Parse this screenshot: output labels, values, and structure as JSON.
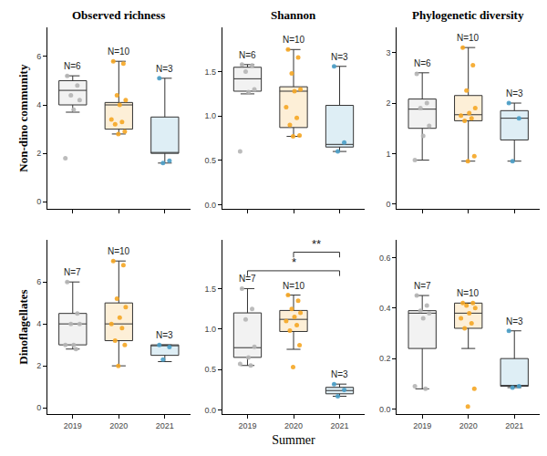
{
  "chart_data": [
    {
      "type": "box",
      "title": "Observed richness",
      "ylabel": "Non-dino community",
      "categories": [
        "2019",
        "2020",
        "2021"
      ],
      "colors": [
        "#b5b5b5",
        "#f5a623",
        "#4a9fc8"
      ],
      "ylim": [
        -0.3,
        7.2
      ],
      "yticks": [
        0,
        2,
        4,
        6
      ],
      "grid": false,
      "tick_labels": "y",
      "boxes": [
        {
          "q1": 4.0,
          "median": 4.6,
          "q3": 5.0,
          "lower": 3.7,
          "upper": 5.2,
          "points": [
            5.2,
            4.8,
            4.4,
            4.2,
            3.8,
            1.8
          ],
          "n_label": "N=6"
        },
        {
          "q1": 3.0,
          "median": 4.0,
          "q3": 4.1,
          "lower": 2.8,
          "upper": 5.8,
          "points": [
            5.8,
            5.7,
            4.4,
            4.2,
            4.0,
            3.4,
            3.3,
            3.2,
            2.9,
            2.8
          ],
          "n_label": "N=10"
        },
        {
          "q1": 2.0,
          "median": 2.0,
          "q3": 3.5,
          "lower": 1.6,
          "upper": 5.1,
          "points": [
            5.1,
            1.7,
            1.6
          ],
          "n_label": "N=3"
        }
      ]
    },
    {
      "type": "box",
      "title": "Shannon",
      "categories": [
        "2019",
        "2020",
        "2021"
      ],
      "colors": [
        "#b5b5b5",
        "#f5a623",
        "#4a9fc8"
      ],
      "ylim": [
        -0.05,
        2.0
      ],
      "yticks": [
        {
          "value": 0,
          "label": "0.0"
        },
        0.5,
        {
          "value": 1,
          "label": "1.0"
        },
        1.5
      ],
      "grid": false,
      "tick_labels": "y",
      "boxes": [
        {
          "q1": 1.28,
          "median": 1.42,
          "q3": 1.55,
          "lower": 1.25,
          "upper": 1.58,
          "points": [
            1.58,
            1.57,
            1.5,
            1.3,
            1.27,
            0.6
          ],
          "n_label": "N=6"
        },
        {
          "q1": 0.87,
          "median": 1.28,
          "q3": 1.33,
          "lower": 0.77,
          "upper": 1.75,
          "points": [
            1.75,
            1.66,
            1.48,
            1.3,
            1.28,
            1.1,
            0.98,
            0.9,
            0.78,
            0.77
          ],
          "n_label": "N=10"
        },
        {
          "q1": 0.65,
          "median": 0.68,
          "q3": 1.12,
          "lower": 0.6,
          "upper": 1.56,
          "points": [
            1.56,
            0.7,
            0.6
          ],
          "n_label": "N=3"
        }
      ]
    },
    {
      "type": "box",
      "title": "Phylogenetic diversity",
      "categories": [
        "2019",
        "2020",
        "2021"
      ],
      "colors": [
        "#b5b5b5",
        "#f5a623",
        "#4a9fc8"
      ],
      "ylim": [
        -0.1,
        3.5
      ],
      "yticks": [
        0,
        1,
        2,
        3
      ],
      "grid": false,
      "tick_labels": "y",
      "boxes": [
        {
          "q1": 1.5,
          "median": 1.88,
          "q3": 2.08,
          "lower": 0.87,
          "upper": 2.6,
          "points": [
            2.58,
            2.0,
            1.9,
            1.55,
            1.35,
            0.87
          ],
          "n_label": "N=6"
        },
        {
          "q1": 1.65,
          "median": 1.77,
          "q3": 2.15,
          "lower": 0.85,
          "upper": 3.1,
          "points": [
            3.1,
            2.75,
            2.25,
            1.9,
            1.8,
            1.75,
            1.7,
            1.65,
            0.95,
            0.85
          ],
          "n_label": "N=10"
        },
        {
          "q1": 1.27,
          "median": 1.7,
          "q3": 1.85,
          "lower": 0.85,
          "upper": 2.0,
          "points": [
            2.0,
            1.7,
            0.85
          ],
          "n_label": "N=3"
        }
      ]
    },
    {
      "type": "box",
      "ylabel": "Dinoflagellates",
      "categories": [
        "2019",
        "2020",
        "2021"
      ],
      "colors": [
        "#b5b5b5",
        "#f5a623",
        "#4a9fc8"
      ],
      "ylim": [
        -0.3,
        8.0
      ],
      "yticks": [
        0,
        2,
        4,
        6
      ],
      "grid": false,
      "boxes": [
        {
          "q1": 3.0,
          "median": 4.0,
          "q3": 4.5,
          "lower": 2.8,
          "upper": 6.0,
          "points": [
            6.0,
            4.5,
            4.0,
            4.0,
            3.0,
            3.0,
            2.8
          ],
          "n_label": "N=7"
        },
        {
          "q1": 3.2,
          "median": 4.0,
          "q3": 5.0,
          "lower": 2.0,
          "upper": 7.0,
          "points": [
            7.0,
            6.8,
            5.2,
            4.8,
            4.3,
            4.0,
            3.8,
            3.2,
            3.0,
            2.0
          ],
          "n_label": "N=10"
        },
        {
          "q1": 2.5,
          "median": 3.0,
          "q3": 3.0,
          "lower": 2.2,
          "upper": 3.0,
          "points": [
            3.0,
            2.9,
            2.3
          ],
          "n_label": "N=3"
        }
      ]
    },
    {
      "type": "box",
      "xlabel": "Summer",
      "categories": [
        "2019",
        "2020",
        "2021"
      ],
      "colors": [
        "#b5b5b5",
        "#f5a623",
        "#4a9fc8"
      ],
      "ylim": [
        -0.05,
        2.1
      ],
      "yticks": [
        {
          "value": 0,
          "label": "0.0"
        },
        0.5,
        {
          "value": 1,
          "label": "1.0"
        },
        1.5
      ],
      "grid": false,
      "boxes": [
        {
          "q1": 0.65,
          "median": 0.77,
          "q3": 1.2,
          "lower": 0.55,
          "upper": 1.5,
          "points": [
            1.5,
            1.25,
            1.12,
            0.78,
            0.65,
            0.57,
            0.55
          ],
          "n_label": "N=7"
        },
        {
          "q1": 0.97,
          "median": 1.12,
          "q3": 1.23,
          "lower": 0.75,
          "upper": 1.42,
          "points": [
            1.42,
            1.35,
            1.25,
            1.2,
            1.15,
            1.1,
            1.05,
            0.98,
            0.8,
            0.53
          ],
          "n_label": "N=10"
        },
        {
          "q1": 0.2,
          "median": 0.24,
          "q3": 0.28,
          "lower": 0.17,
          "upper": 0.32,
          "points": [
            0.32,
            0.25,
            0.17
          ],
          "n_label": "N=3"
        }
      ],
      "significance": [
        {
          "from": "2019",
          "to": "2021",
          "label": "*",
          "y": 1.72
        },
        {
          "from": "2020",
          "to": "2021",
          "label": "**",
          "y": 1.95
        }
      ]
    },
    {
      "type": "box",
      "categories": [
        "2019",
        "2020",
        "2021"
      ],
      "colors": [
        "#b5b5b5",
        "#f5a623",
        "#4a9fc8"
      ],
      "ylim": [
        -0.02,
        0.67
      ],
      "yticks": [
        {
          "value": 0,
          "label": "0.0"
        },
        0.2,
        0.4,
        0.6
      ],
      "grid": false,
      "boxes": [
        {
          "q1": 0.24,
          "median": 0.38,
          "q3": 0.39,
          "lower": 0.08,
          "upper": 0.45,
          "points": [
            0.45,
            0.41,
            0.39,
            0.38,
            0.36,
            0.09,
            0.08
          ],
          "n_label": "N=7"
        },
        {
          "q1": 0.32,
          "median": 0.38,
          "q3": 0.42,
          "lower": 0.24,
          "upper": 0.42,
          "points": [
            0.42,
            0.42,
            0.41,
            0.4,
            0.38,
            0.36,
            0.34,
            0.32,
            0.08,
            0.01
          ],
          "n_label": "N=10"
        },
        {
          "q1": 0.09,
          "median": 0.09,
          "q3": 0.2,
          "lower": 0.085,
          "upper": 0.31,
          "points": [
            0.31,
            0.09,
            0.085
          ],
          "n_label": "N=3"
        }
      ]
    }
  ]
}
